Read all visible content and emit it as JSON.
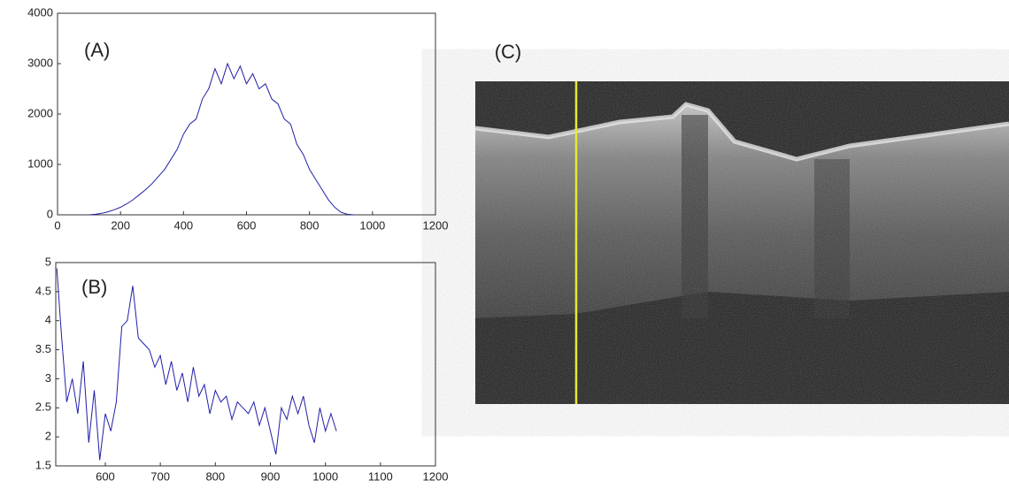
{
  "chart_data": [
    {
      "type": "line",
      "annotation": "(A)",
      "xlim": [
        0,
        1200
      ],
      "xticks": [
        0,
        200,
        400,
        600,
        800,
        1000,
        1200
      ],
      "ylim": [
        0,
        4000
      ],
      "yticks": [
        0,
        1000,
        2000,
        3000,
        4000
      ],
      "series": [
        {
          "color": "#1f1fa8",
          "x": [
            100,
            120,
            140,
            160,
            180,
            200,
            220,
            240,
            260,
            280,
            300,
            320,
            340,
            360,
            380,
            400,
            420,
            440,
            460,
            480,
            500,
            520,
            540,
            560,
            580,
            600,
            620,
            640,
            660,
            680,
            700,
            720,
            740,
            760,
            780,
            800,
            820,
            840,
            860,
            880,
            900,
            920,
            940
          ],
          "values": [
            0,
            10,
            30,
            60,
            100,
            150,
            220,
            300,
            400,
            500,
            620,
            760,
            900,
            1100,
            1300,
            1600,
            1800,
            1900,
            2300,
            2500,
            2900,
            2600,
            3000,
            2700,
            2950,
            2600,
            2800,
            2500,
            2600,
            2300,
            2200,
            1900,
            1800,
            1400,
            1200,
            900,
            700,
            500,
            300,
            150,
            50,
            10,
            0
          ]
        }
      ]
    },
    {
      "type": "line",
      "annotation": "(B)",
      "xlim": [
        510,
        1200
      ],
      "xticks": [
        600,
        700,
        800,
        900,
        1000,
        1100,
        1200
      ],
      "ylim": [
        1.5,
        5
      ],
      "yticks": [
        1.5,
        2,
        2.5,
        3,
        3.5,
        4,
        4.5,
        5
      ],
      "series": [
        {
          "color": "#1f1fa8",
          "x": [
            512,
            520,
            530,
            540,
            550,
            560,
            570,
            580,
            590,
            600,
            610,
            620,
            630,
            640,
            650,
            660,
            670,
            680,
            690,
            700,
            710,
            720,
            730,
            740,
            750,
            760,
            770,
            780,
            790,
            800,
            810,
            820,
            830,
            840,
            850,
            860,
            870,
            880,
            890,
            900,
            910,
            920,
            930,
            940,
            950,
            960,
            970,
            980,
            990,
            1000,
            1010,
            1020
          ],
          "values": [
            4.9,
            3.8,
            2.6,
            3.0,
            2.4,
            3.3,
            1.9,
            2.8,
            1.6,
            2.4,
            2.1,
            2.6,
            3.9,
            4.0,
            4.6,
            3.7,
            3.6,
            3.5,
            3.2,
            3.4,
            2.9,
            3.3,
            2.8,
            3.1,
            2.6,
            3.2,
            2.7,
            2.9,
            2.4,
            2.8,
            2.6,
            2.7,
            2.3,
            2.6,
            2.5,
            2.4,
            2.6,
            2.2,
            2.5,
            2.1,
            1.7,
            2.5,
            2.3,
            2.7,
            2.4,
            2.7,
            2.2,
            1.9,
            2.5,
            2.1,
            2.4,
            2.1
          ]
        }
      ]
    }
  ],
  "panel_c": {
    "label": "(C)"
  }
}
